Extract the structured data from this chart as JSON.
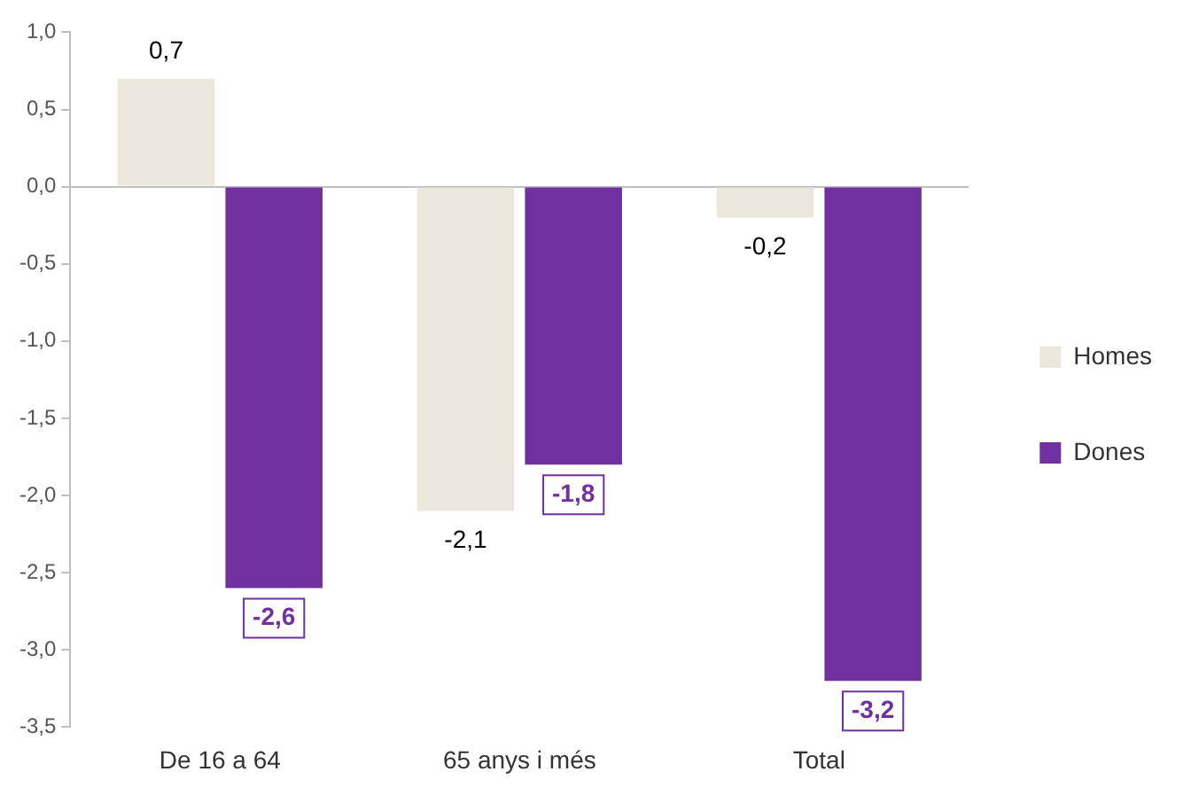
{
  "chart_data": {
    "type": "bar",
    "categories": [
      "De 16 a 64",
      "65 anys i més",
      "Total"
    ],
    "series": [
      {
        "name": "Homes",
        "color": "#ebe7dc",
        "values": [
          0.7,
          -2.1,
          -0.2
        ],
        "value_labels": [
          "0,7",
          "-2,1",
          "-0,2"
        ]
      },
      {
        "name": "Dones",
        "color": "#7030a0",
        "values": [
          -2.6,
          -1.8,
          -3.2
        ],
        "value_labels": [
          "-2,6",
          "-1,8",
          "-3,2"
        ]
      }
    ],
    "ylim": [
      -3.5,
      1.0
    ],
    "yticks": [
      {
        "value": 1.0,
        "label": "1,0"
      },
      {
        "value": 0.5,
        "label": "0,5"
      },
      {
        "value": 0,
        "label": "0,0"
      },
      {
        "value": -0.5,
        "label": "-0,5"
      },
      {
        "value": -1.0,
        "label": "-1,0"
      },
      {
        "value": -1.5,
        "label": "-1,5"
      },
      {
        "value": -2.0,
        "label": "-2,0"
      },
      {
        "value": -2.5,
        "label": "-2,5"
      },
      {
        "value": -3.0,
        "label": "-3,0"
      },
      {
        "value": -3.5,
        "label": "-3,5"
      }
    ],
    "legend": "right"
  }
}
